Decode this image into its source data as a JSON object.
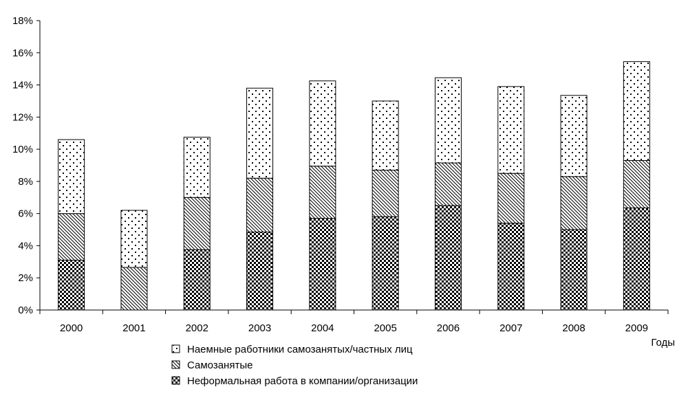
{
  "chart_data": {
    "type": "bar",
    "stacked": true,
    "categories": [
      "2000",
      "2001",
      "2002",
      "2003",
      "2004",
      "2005",
      "2006",
      "2007",
      "2008",
      "2009"
    ],
    "xlabel": "Годы",
    "ylabel": "",
    "ylim": [
      0,
      18
    ],
    "y_ticks": [
      "0%",
      "2%",
      "4%",
      "6%",
      "8%",
      "10%",
      "12%",
      "14%",
      "16%",
      "18%"
    ],
    "grid": false,
    "legend_position": "bottom",
    "series": [
      {
        "name": "Неформальная работа в компании/организации",
        "pattern": "dense-squares",
        "values": [
          3.1,
          0,
          3.75,
          4.85,
          5.7,
          5.8,
          6.5,
          5.4,
          5.0,
          6.35
        ]
      },
      {
        "name": "Самозанятые",
        "pattern": "diagonal-hatch",
        "values": [
          2.9,
          2.65,
          3.25,
          3.35,
          3.25,
          2.9,
          2.65,
          3.1,
          3.3,
          2.95
        ]
      },
      {
        "name": "Наемные работники самозанятых/частных лиц",
        "pattern": "sparse-dots",
        "values": [
          4.6,
          3.55,
          3.75,
          5.6,
          5.3,
          4.3,
          5.3,
          5.4,
          5.05,
          6.15
        ]
      }
    ],
    "legend_order": [
      2,
      1,
      0
    ]
  },
  "colors": {
    "stroke": "#000000",
    "fill": "#ffffff"
  }
}
